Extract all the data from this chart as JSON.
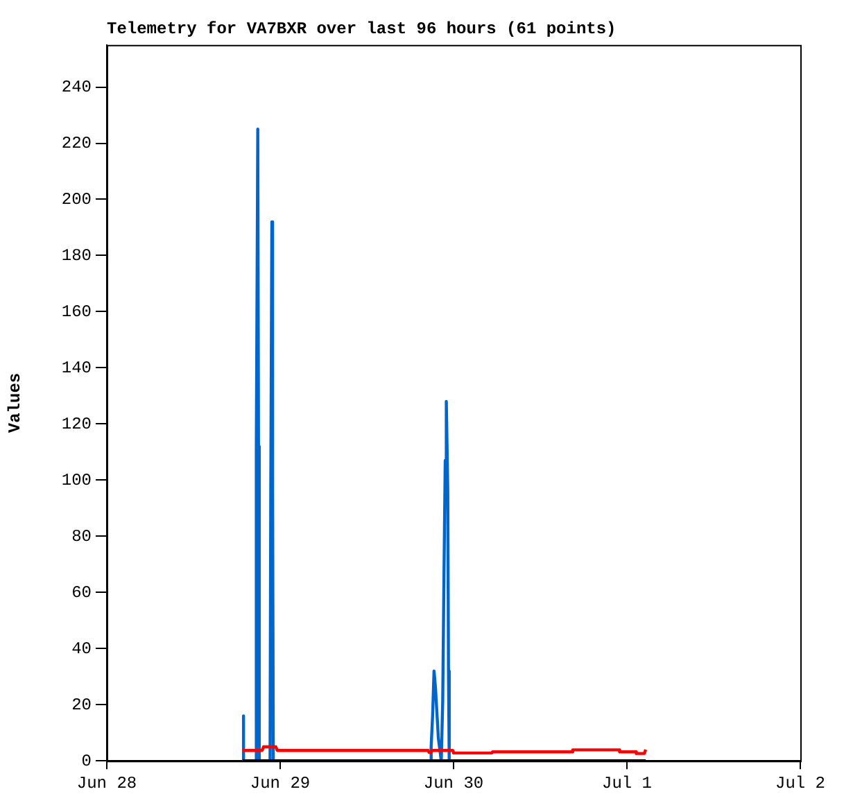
{
  "chart_data": {
    "type": "line",
    "title": "Telemetry for VA7BXR over last 96 hours (61 points)",
    "ylabel": "Values",
    "xlim": [
      "--06-28",
      "--07-02"
    ],
    "xticks": [
      {
        "value": "--06-28",
        "label": "Jun 28"
      },
      {
        "value": "--06-29",
        "label": "Jun 29"
      },
      {
        "value": "--06-30",
        "label": "Jun 30"
      },
      {
        "value": "--07-01",
        "label": "Jul 1"
      },
      {
        "value": "--07-02",
        "label": "Jul 2"
      }
    ],
    "ylim": [
      0,
      255
    ],
    "yticks": [
      0,
      20,
      40,
      60,
      80,
      100,
      120,
      140,
      160,
      180,
      200,
      220,
      240
    ],
    "grid": false,
    "legend": false,
    "marker": "none",
    "line_style": "solid",
    "series": [
      {
        "color": "#000000",
        "x": [
          "--06-28T18:48",
          "--07-01T02:36"
        ],
        "values": [
          0,
          0
        ]
      },
      {
        "color": "#ff0000",
        "x": [
          "--06-28T18:48",
          "--06-28T21:30",
          "--06-28T21:42",
          "--06-28T23:24",
          "--06-28T23:36",
          "--06-29T20:30",
          "--06-29T20:36",
          "--06-29T20:54",
          "--06-29T21:00",
          "--06-29T23:54",
          "--06-30T00:00",
          "--06-30T05:18",
          "--06-30T05:24",
          "--06-30T16:24",
          "--06-30T16:30",
          "--06-30T22:54",
          "--06-30T23:00",
          "--07-01T01:12",
          "--07-01T01:18",
          "--07-01T02:24",
          "--07-01T02:36"
        ],
        "values": [
          3.7,
          3.7,
          5,
          5,
          3.7,
          3.7,
          3,
          3,
          3.7,
          3.7,
          2.8,
          2.8,
          3.2,
          3.2,
          3.9,
          3.9,
          3.2,
          3.2,
          2.6,
          2.6,
          4
        ]
      },
      {
        "color": "#0066cc",
        "x": [
          "--06-28T18:51",
          "--06-28T18:54",
          "--06-28T18:57",
          "--06-28T20:36",
          "--06-28T20:42",
          "--06-28T20:54",
          "--06-28T21:00",
          "--06-28T21:06",
          "--06-28T21:12",
          "--06-28T22:36",
          "--06-28T22:42",
          "--06-28T22:51",
          "--06-28T22:57",
          "--06-28T23:03",
          "--06-29T20:48",
          "--06-29T20:54",
          "--06-29T21:06",
          "--06-29T21:18",
          "--06-29T21:30",
          "--06-29T21:54",
          "--06-29T22:18",
          "--06-29T22:30",
          "--06-29T22:40",
          "--06-29T22:51",
          "--06-29T23:00",
          "--06-29T23:12",
          "--06-29T23:18",
          "--06-29T23:24"
        ],
        "values": [
          0,
          16,
          0,
          0,
          112,
          225,
          112,
          0,
          0,
          0,
          97,
          192,
          97,
          0,
          0,
          5,
          16,
          32,
          26,
          8,
          0,
          21,
          64,
          107,
          128,
          96,
          32,
          0
        ]
      }
    ]
  }
}
